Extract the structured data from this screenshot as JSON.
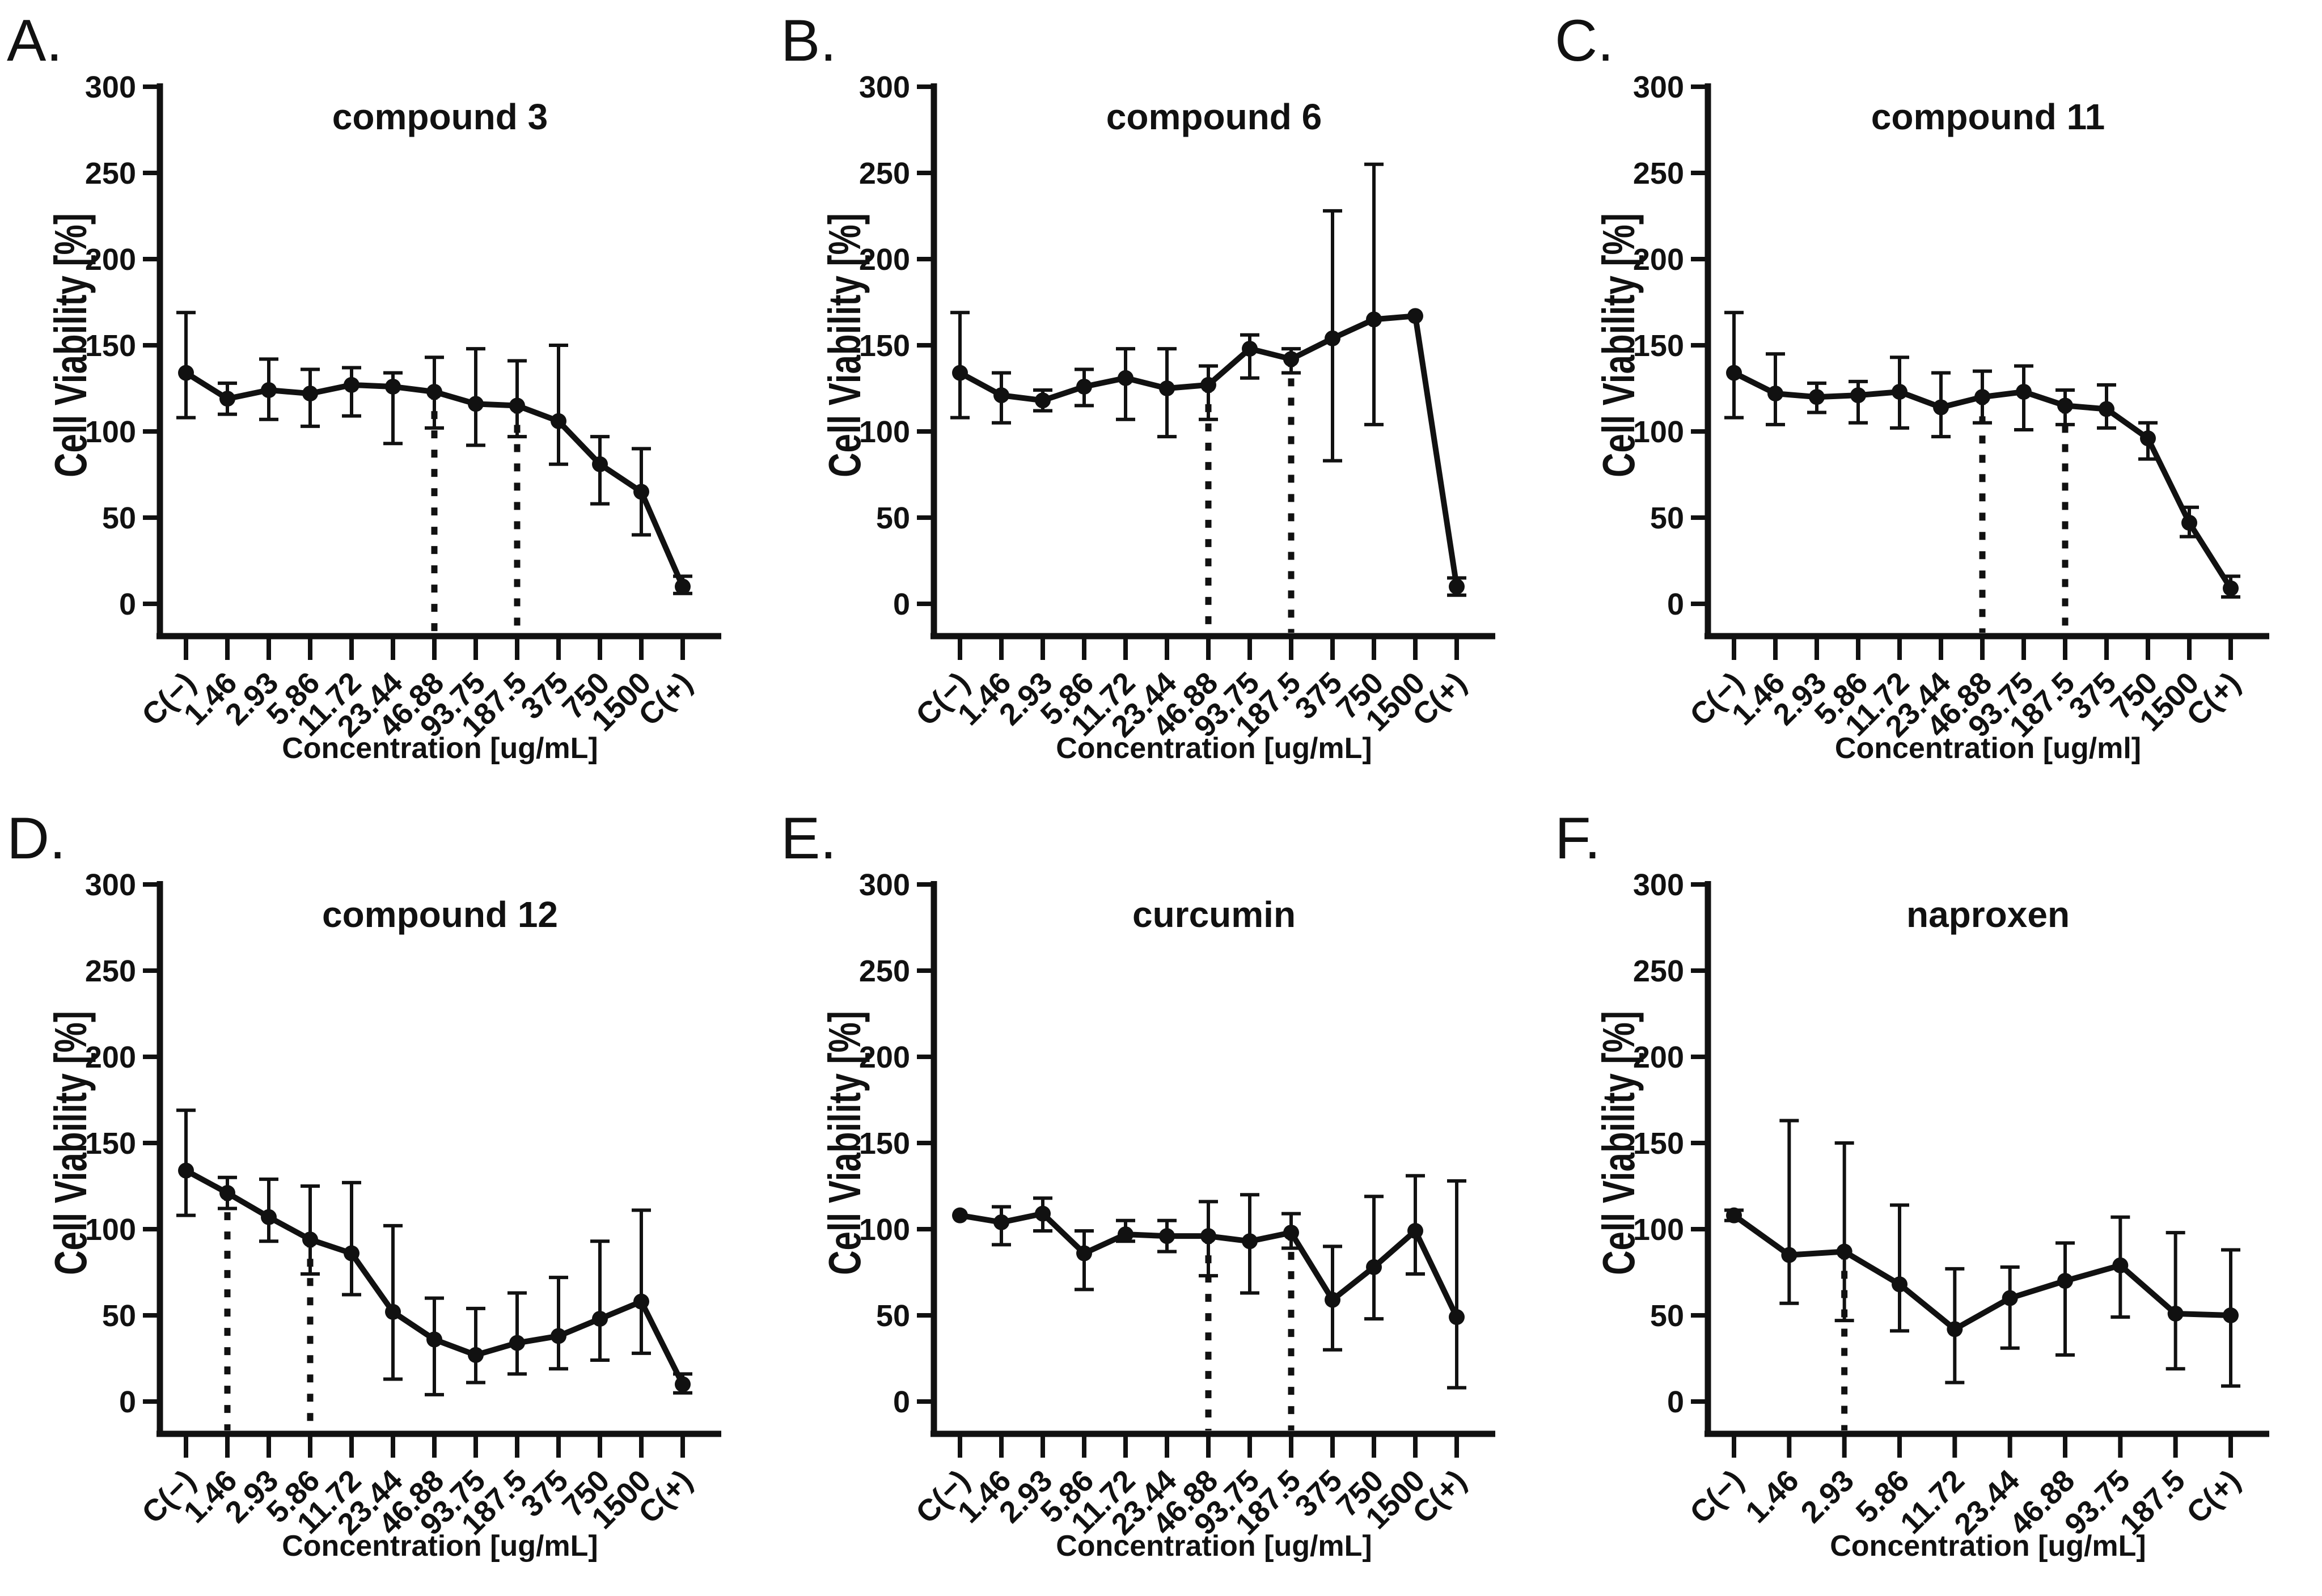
{
  "figure_title": "Cell viability dose-response panels",
  "accent_color": "#111111",
  "background_color": "#ffffff",
  "chart_data": [
    {
      "panel_letter": "A.",
      "type": "line",
      "title": "compound 3",
      "xlabel": "Concentration [ug/mL]",
      "ylabel": "Cell Viability [%]",
      "ylim": [
        0,
        300
      ],
      "yticks": [
        0,
        50,
        100,
        150,
        200,
        250,
        300
      ],
      "grid": "off",
      "legend": "none",
      "categories": [
        "C(−)",
        "1.46",
        "2.93",
        "5.86",
        "11.72",
        "23.44",
        "46.88",
        "93.75",
        "187.5",
        "375",
        "750",
        "1500",
        "C(+)"
      ],
      "values": [
        134,
        119,
        124,
        122,
        127,
        126,
        123,
        116,
        115,
        106,
        81,
        65,
        10
      ],
      "err_low": [
        108,
        110,
        107,
        103,
        109,
        93,
        102,
        92,
        97,
        81,
        58,
        40,
        6
      ],
      "err_high": [
        169,
        128,
        142,
        136,
        137,
        134,
        143,
        148,
        141,
        150,
        97,
        90,
        16
      ],
      "dashed_indices": [
        6,
        8
      ]
    },
    {
      "panel_letter": "B.",
      "type": "line",
      "title": "compound 6",
      "xlabel": "Concentration [ug/mL]",
      "ylabel": "Cell Viability [%]",
      "ylim": [
        0,
        300
      ],
      "yticks": [
        0,
        50,
        100,
        150,
        200,
        250,
        300
      ],
      "grid": "off",
      "legend": "none",
      "categories": [
        "C(−)",
        "1.46",
        "2.93",
        "5.86",
        "11.72",
        "23.44",
        "46.88",
        "93.75",
        "187.5",
        "375",
        "750",
        "1500",
        "C(+)"
      ],
      "values": [
        134,
        121,
        118,
        126,
        131,
        125,
        127,
        148,
        142,
        154,
        165,
        167,
        10
      ],
      "err_low": [
        108,
        105,
        112,
        115,
        107,
        97,
        107,
        131,
        134,
        83,
        104,
        167,
        5
      ],
      "err_high": [
        169,
        134,
        124,
        136,
        148,
        148,
        138,
        156,
        148,
        228,
        255,
        167,
        15
      ],
      "dashed_indices": [
        6,
        8
      ]
    },
    {
      "panel_letter": "C.",
      "type": "line",
      "title": "compound 11",
      "xlabel": "Concentration [ug/ml]",
      "ylabel": "Cell Viability [%]",
      "ylim": [
        0,
        300
      ],
      "yticks": [
        0,
        50,
        100,
        150,
        200,
        250,
        300
      ],
      "grid": "off",
      "legend": "none",
      "categories": [
        "C(−)",
        "1.46",
        "2.93",
        "5.86",
        "11.72",
        "23.44",
        "46.88",
        "93.75",
        "187.5",
        "375",
        "750",
        "1500",
        "C(+)"
      ],
      "values": [
        134,
        122,
        120,
        121,
        123,
        114,
        120,
        123,
        115,
        113,
        96,
        47,
        9
      ],
      "err_low": [
        108,
        104,
        111,
        105,
        102,
        97,
        105,
        101,
        104,
        102,
        84,
        39,
        4
      ],
      "err_high": [
        169,
        145,
        128,
        129,
        143,
        134,
        135,
        138,
        124,
        127,
        105,
        56,
        16
      ],
      "dashed_indices": [
        6,
        8
      ]
    },
    {
      "panel_letter": "D.",
      "type": "line",
      "title": "compound 12",
      "xlabel": "Concentration [ug/mL]",
      "ylabel": "Cell Viability [%]",
      "ylim": [
        0,
        300
      ],
      "yticks": [
        0,
        50,
        100,
        150,
        200,
        250,
        300
      ],
      "grid": "off",
      "legend": "none",
      "categories": [
        "C(−)",
        "1.46",
        "2.93",
        "5.86",
        "11.72",
        "23.44",
        "46.88",
        "93.75",
        "187.5",
        "375",
        "750",
        "1500",
        "C(+)"
      ],
      "values": [
        134,
        121,
        107,
        94,
        86,
        52,
        36,
        27,
        34,
        38,
        48,
        58,
        10
      ],
      "err_low": [
        108,
        112,
        93,
        74,
        62,
        13,
        4,
        11,
        16,
        19,
        24,
        28,
        5
      ],
      "err_high": [
        169,
        130,
        129,
        125,
        127,
        102,
        60,
        54,
        63,
        72,
        93,
        111,
        16
      ],
      "dashed_indices": [
        1,
        3
      ]
    },
    {
      "panel_letter": "E.",
      "type": "line",
      "title": "curcumin",
      "xlabel": "Concentration [ug/mL]",
      "ylabel": "Cell Viability [%]",
      "ylim": [
        0,
        300
      ],
      "yticks": [
        0,
        50,
        100,
        150,
        200,
        250,
        300
      ],
      "grid": "off",
      "legend": "none",
      "categories": [
        "C(−)",
        "1.46",
        "2.93",
        "5.86",
        "11.72",
        "23.44",
        "46.88",
        "93.75",
        "187.5",
        "375",
        "750",
        "1500",
        "C(+)"
      ],
      "values": [
        108,
        104,
        109,
        86,
        97,
        96,
        96,
        93,
        98,
        59,
        78,
        99,
        49
      ],
      "err_low": [
        108,
        91,
        99,
        65,
        93,
        87,
        73,
        63,
        89,
        30,
        48,
        74,
        8
      ],
      "err_high": [
        108,
        113,
        118,
        99,
        105,
        105,
        116,
        120,
        109,
        90,
        119,
        131,
        128
      ],
      "dashed_indices": [
        6,
        8
      ]
    },
    {
      "panel_letter": "F.",
      "type": "line",
      "title": "naproxen",
      "xlabel": "Concentration [ug/mL]",
      "ylabel": "Cell Viability [%]",
      "ylim": [
        0,
        300
      ],
      "yticks": [
        0,
        50,
        100,
        150,
        200,
        250,
        300
      ],
      "grid": "off",
      "legend": "none",
      "categories": [
        "C(−)",
        "1.46",
        "2.93",
        "5.86",
        "11.72",
        "23.44",
        "46.88",
        "93.75",
        "187.5",
        "C(+)"
      ],
      "values": [
        108,
        85,
        87,
        68,
        42,
        60,
        70,
        79,
        51,
        50
      ],
      "err_low": [
        105,
        57,
        47,
        41,
        11,
        31,
        27,
        49,
        19,
        9
      ],
      "err_high": [
        111,
        163,
        150,
        114,
        77,
        78,
        92,
        107,
        98,
        88
      ],
      "dashed_indices": [
        2
      ]
    }
  ]
}
